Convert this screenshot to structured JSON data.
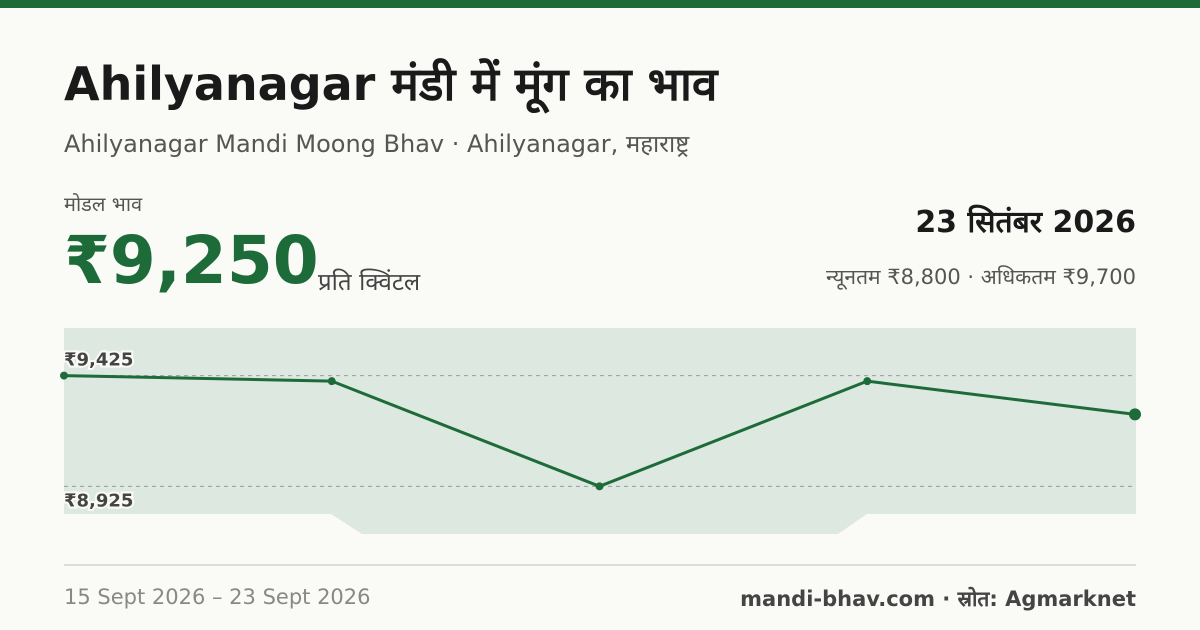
{
  "header": {
    "title": "Ahilyanagar मंडी में मूंग का भाव",
    "subtitle": "Ahilyanagar Mandi Moong Bhav · Ahilyanagar, महाराष्ट्र"
  },
  "price": {
    "label": "मोडल भाव",
    "value": "₹9,250",
    "unit": "प्रति क्विंटल",
    "date": "23 सितंबर 2026",
    "range": "न्यूनतम ₹8,800 · अधिकतम ₹9,700"
  },
  "chart_data": {
    "type": "line",
    "categories": [
      null,
      null,
      null,
      null,
      null
    ],
    "values": [
      9425,
      9400,
      8925,
      9400,
      9250
    ],
    "color": "#1e6b3a",
    "ylim": [
      8800,
      9640
    ],
    "yticks": [
      {
        "value": 9425,
        "label": "₹9,425"
      },
      {
        "value": 8925,
        "label": "₹8,925"
      }
    ],
    "grid": true
  },
  "footer": {
    "left": "15 Sept 2026 – 23 Sept 2026",
    "right": "mandi-bhav.com · स्रोत: Agmarknet"
  }
}
